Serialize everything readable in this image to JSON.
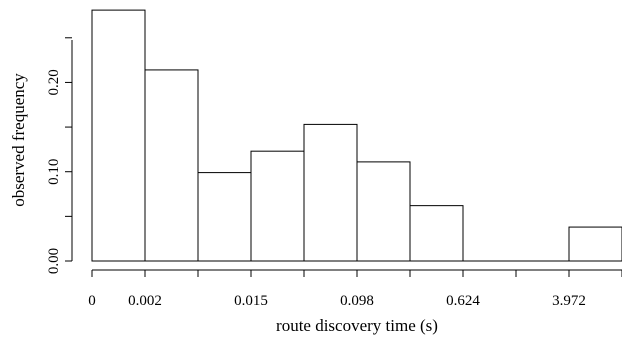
{
  "chart_data": {
    "type": "bar",
    "title": "",
    "xlabel": "route discovery time (s)",
    "ylabel": "observed frequency",
    "x_tick_labels": [
      "0",
      "0.002",
      "0.015",
      "0.098",
      "0.624",
      "3.972"
    ],
    "y_ticks": [
      0.0,
      0.1,
      0.2
    ],
    "y_tick_labels": [
      "0.00",
      "0.10",
      "0.20"
    ],
    "ylim": [
      0,
      0.28
    ],
    "bin_count": 10,
    "values": [
      0.281,
      0.214,
      0.099,
      0.123,
      0.153,
      0.111,
      0.062,
      0,
      0,
      0.038
    ],
    "grid": false,
    "legend": "none"
  }
}
